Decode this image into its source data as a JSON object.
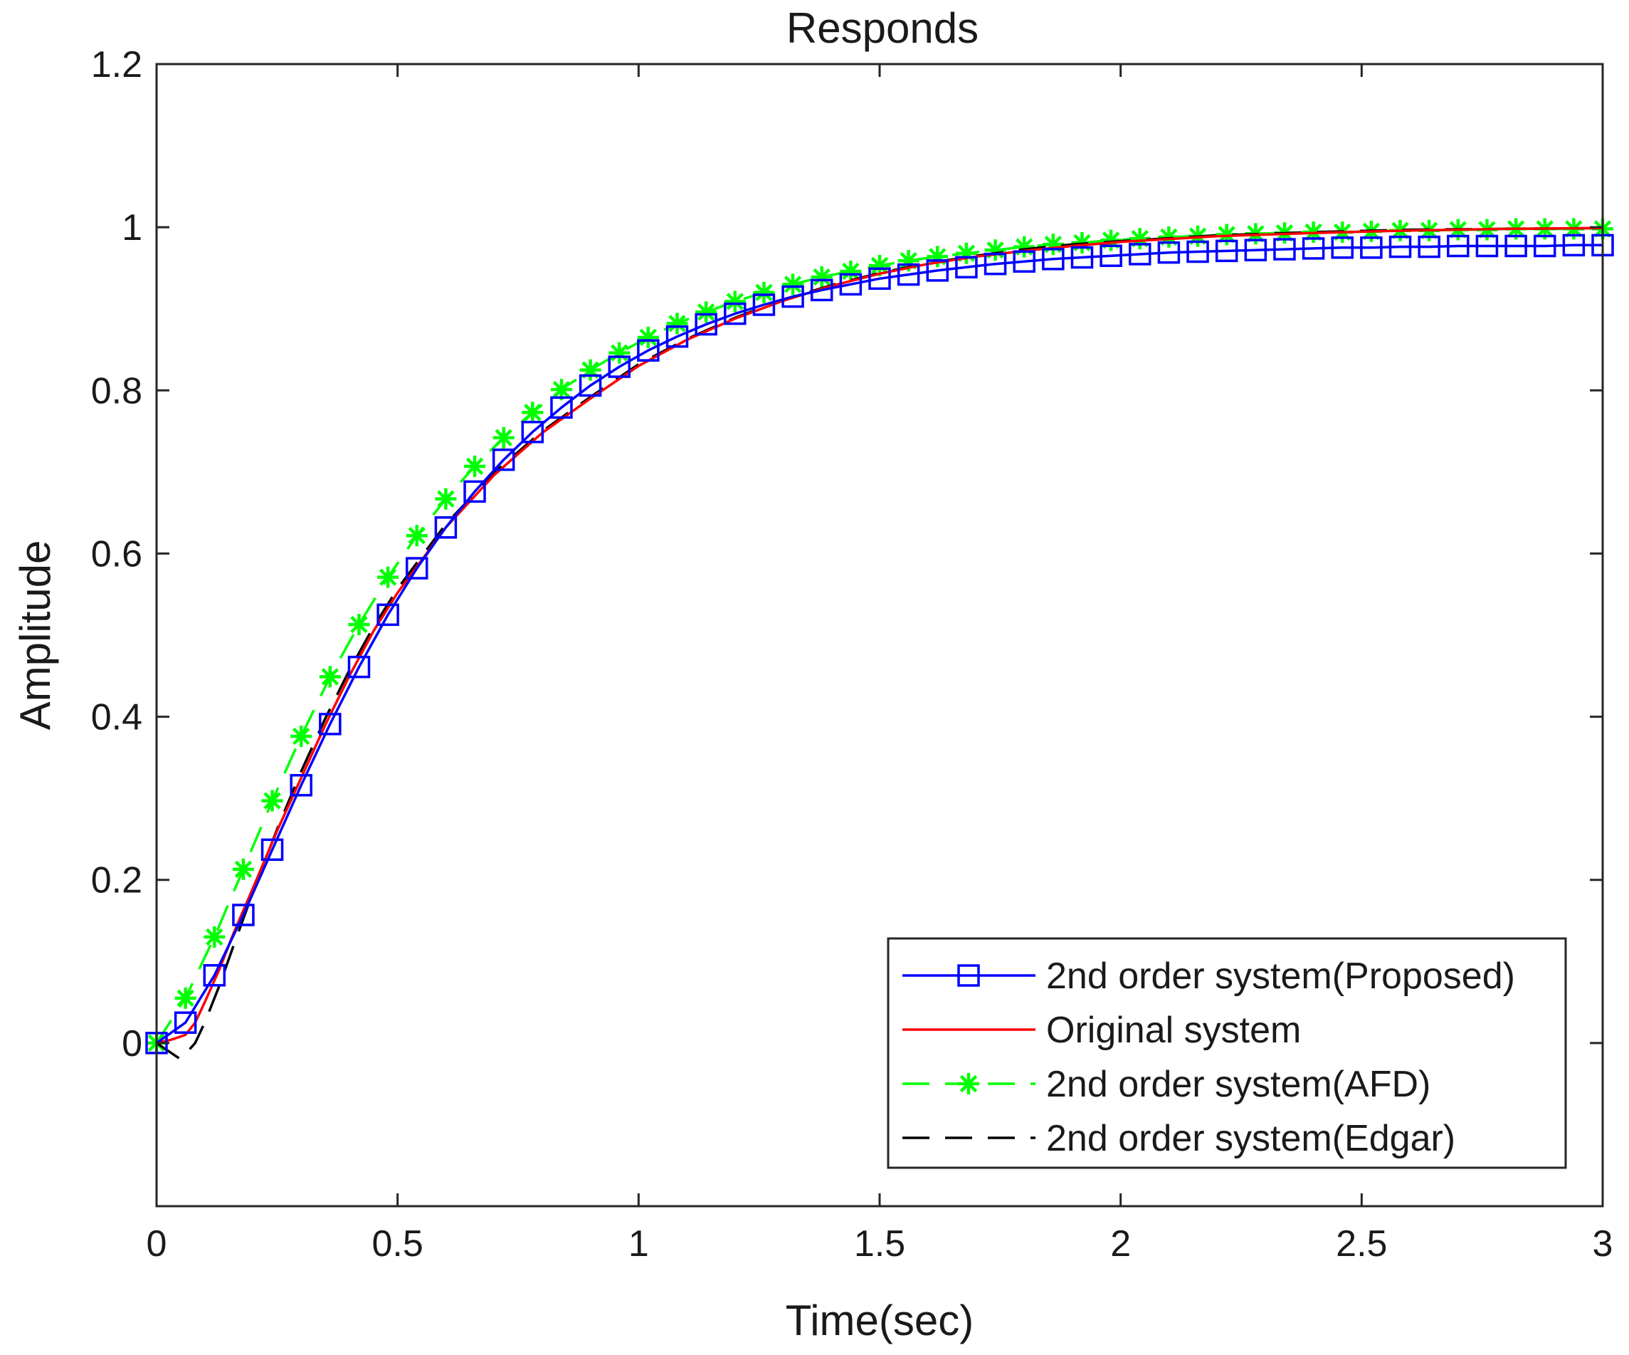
{
  "chart_data": {
    "type": "line",
    "title": "Responds",
    "xlabel": "Time(sec)",
    "ylabel": "Amplitude",
    "xlim": [
      0,
      3
    ],
    "ylim": [
      -0.2,
      1.2
    ],
    "xticks": [
      0,
      0.5,
      1,
      1.5,
      2,
      2.5,
      3
    ],
    "xtick_labels": [
      "0",
      "0.5",
      "1",
      "1.5",
      "2",
      "2.5",
      "3"
    ],
    "yticks": [
      0,
      0.2,
      0.4,
      0.6,
      0.8,
      1,
      1.2
    ],
    "ytick_labels": [
      "0",
      "0.2",
      "0.4",
      "0.6",
      "0.8",
      "1",
      "1.2"
    ],
    "grid": false,
    "legend_position": "bottom-right",
    "series": [
      {
        "name": "2nd order system(Proposed)",
        "color": "#0000ff",
        "line": "solid",
        "marker": "square",
        "x": [
          0,
          0.06,
          0.12,
          0.18,
          0.24,
          0.3,
          0.36,
          0.42,
          0.48,
          0.54,
          0.6,
          0.66,
          0.72,
          0.78,
          0.84,
          0.9,
          0.96,
          1.02,
          1.08,
          1.14,
          1.2,
          1.26,
          1.32,
          1.38,
          1.44,
          1.5,
          1.56,
          1.62,
          1.68,
          1.74,
          1.8,
          1.86,
          1.92,
          1.98,
          2.04,
          2.1,
          2.16,
          2.22,
          2.28,
          2.34,
          2.4,
          2.46,
          2.52,
          2.58,
          2.64,
          2.7,
          2.76,
          2.82,
          2.88,
          2.94,
          3.0
        ],
        "y": [
          0,
          0.025,
          0.083,
          0.157,
          0.237,
          0.316,
          0.391,
          0.461,
          0.525,
          0.582,
          0.632,
          0.676,
          0.715,
          0.749,
          0.779,
          0.806,
          0.829,
          0.849,
          0.866,
          0.881,
          0.894,
          0.905,
          0.915,
          0.923,
          0.93,
          0.937,
          0.942,
          0.947,
          0.951,
          0.955,
          0.958,
          0.961,
          0.963,
          0.965,
          0.967,
          0.969,
          0.97,
          0.971,
          0.972,
          0.973,
          0.974,
          0.975,
          0.975,
          0.976,
          0.976,
          0.977,
          0.977,
          0.977,
          0.977,
          0.978,
          0.978
        ]
      },
      {
        "name": "Original system",
        "color": "#ff0000",
        "line": "solid",
        "marker": "none",
        "x": [
          0,
          0.03,
          0.06,
          0.08,
          0.1,
          0.13,
          0.16,
          0.2,
          0.25,
          0.3,
          0.35,
          0.4,
          0.45,
          0.5,
          0.6,
          0.7,
          0.8,
          0.9,
          1.0,
          1.1,
          1.2,
          1.3,
          1.4,
          1.5,
          1.6,
          1.7,
          1.8,
          1.9,
          2.0,
          2.2,
          2.4,
          2.6,
          2.8,
          3.0
        ],
        "y": [
          0,
          0.004,
          0.01,
          0.025,
          0.05,
          0.09,
          0.135,
          0.19,
          0.26,
          0.325,
          0.39,
          0.45,
          0.505,
          0.552,
          0.632,
          0.696,
          0.748,
          0.79,
          0.83,
          0.862,
          0.888,
          0.91,
          0.928,
          0.943,
          0.955,
          0.964,
          0.971,
          0.977,
          0.982,
          0.989,
          0.993,
          0.996,
          0.998,
          0.999
        ]
      },
      {
        "name": "2nd order system(AFD)",
        "color": "#00ff00",
        "line": "dashed",
        "marker": "star",
        "x": [
          0,
          0.06,
          0.12,
          0.18,
          0.24,
          0.3,
          0.36,
          0.42,
          0.48,
          0.54,
          0.6,
          0.66,
          0.72,
          0.78,
          0.84,
          0.9,
          0.96,
          1.02,
          1.08,
          1.14,
          1.2,
          1.26,
          1.32,
          1.38,
          1.44,
          1.5,
          1.56,
          1.62,
          1.68,
          1.74,
          1.8,
          1.86,
          1.92,
          1.98,
          2.04,
          2.1,
          2.16,
          2.22,
          2.28,
          2.34,
          2.4,
          2.46,
          2.52,
          2.58,
          2.64,
          2.7,
          2.76,
          2.82,
          2.88,
          2.94,
          3.0
        ],
        "y": [
          0,
          0.055,
          0.13,
          0.213,
          0.297,
          0.376,
          0.449,
          0.513,
          0.571,
          0.622,
          0.667,
          0.707,
          0.742,
          0.773,
          0.801,
          0.825,
          0.846,
          0.865,
          0.882,
          0.896,
          0.909,
          0.92,
          0.93,
          0.939,
          0.946,
          0.953,
          0.959,
          0.964,
          0.968,
          0.972,
          0.976,
          0.979,
          0.981,
          0.984,
          0.986,
          0.988,
          0.989,
          0.991,
          0.992,
          0.993,
          0.994,
          0.994,
          0.995,
          0.996,
          0.996,
          0.997,
          0.997,
          0.998,
          0.998,
          0.998,
          0.998
        ]
      },
      {
        "name": "2nd order system(Edgar)",
        "color": "#000000",
        "line": "dashed",
        "marker": "none",
        "x": [
          0,
          0.025,
          0.05,
          0.08,
          0.1,
          0.13,
          0.16,
          0.2,
          0.25,
          0.3,
          0.35,
          0.4,
          0.45,
          0.5,
          0.6,
          0.7,
          0.8,
          0.9,
          1.0,
          1.1,
          1.2,
          1.3,
          1.4,
          1.5,
          1.6,
          1.7,
          1.8,
          1.9,
          2.0,
          2.2,
          2.4,
          2.6,
          2.8,
          3.0
        ],
        "y": [
          0,
          -0.01,
          -0.02,
          0.0,
          0.025,
          0.07,
          0.12,
          0.185,
          0.262,
          0.333,
          0.398,
          0.457,
          0.51,
          0.557,
          0.636,
          0.699,
          0.75,
          0.792,
          0.832,
          0.863,
          0.889,
          0.911,
          0.929,
          0.944,
          0.956,
          0.965,
          0.973,
          0.979,
          0.983,
          0.99,
          0.994,
          0.997,
          0.998,
          0.999
        ]
      }
    ]
  }
}
